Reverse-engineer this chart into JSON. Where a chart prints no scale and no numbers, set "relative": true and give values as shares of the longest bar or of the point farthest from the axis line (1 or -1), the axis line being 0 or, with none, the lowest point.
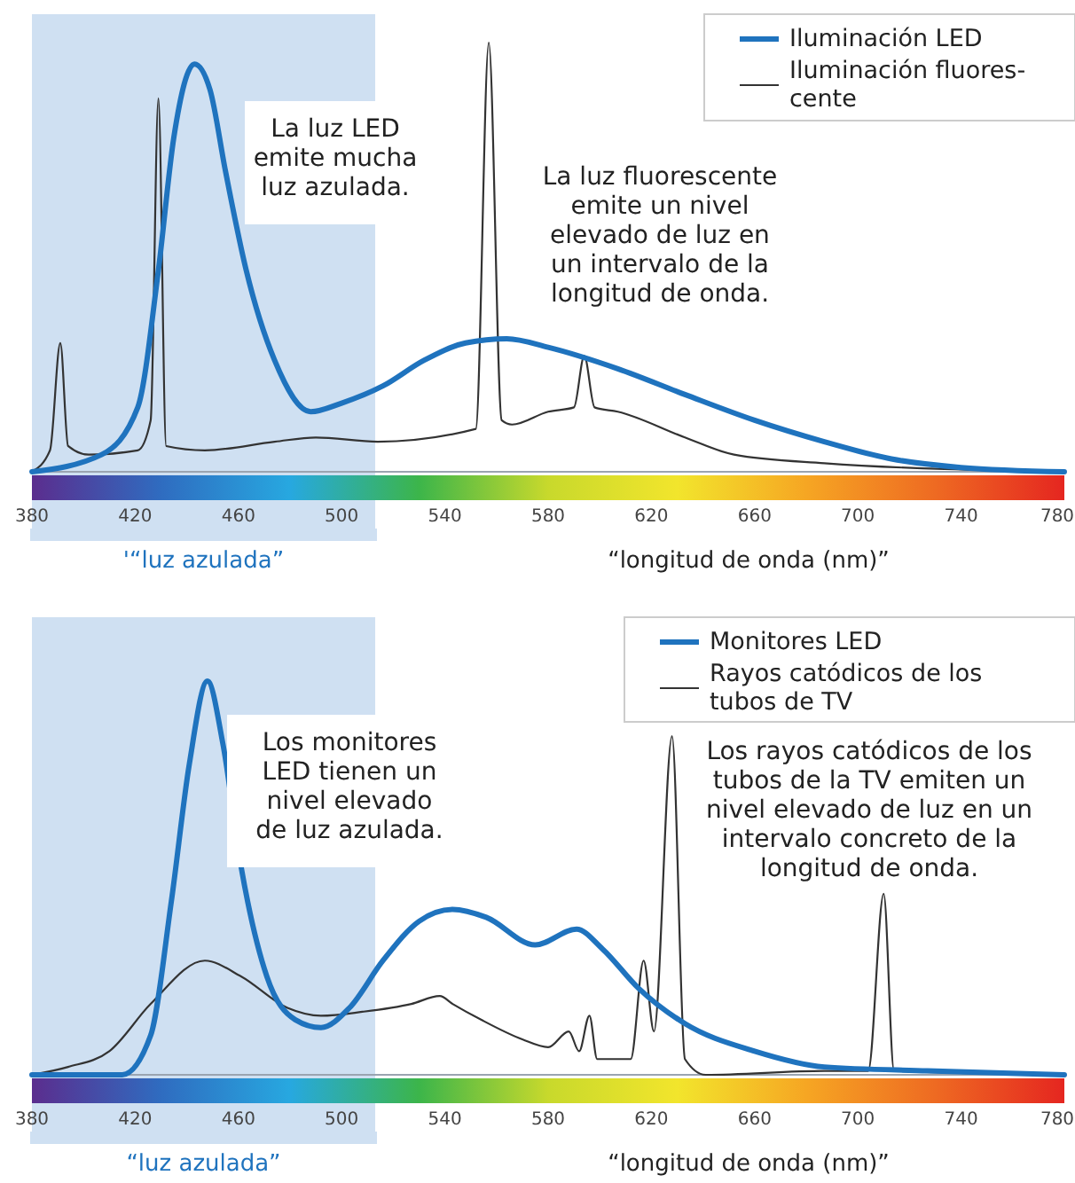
{
  "chart_data": [
    {
      "type": "line",
      "relative": true,
      "xlabel": "“longitud de onda (nm)”",
      "xlim": [
        380,
        780
      ],
      "xticks": [
        380,
        420,
        460,
        500,
        540,
        580,
        620,
        660,
        700,
        740,
        780
      ],
      "legend": "top right",
      "tick_labels": "x",
      "bands": [
        {
          "axis": "x",
          "from": 380,
          "to": 513,
          "label": "'“luz azulada”",
          "color": "#cfe0f2"
        }
      ],
      "annotations": [
        "La luz LED\nemite mucha\nluz azulada.",
        "La luz fluorescente\nemite un nivel\nelevado de luz en\nun intervalo de la\nlongitud de onda."
      ],
      "series": [
        {
          "name": "Iluminación LED",
          "color": "#1f73be",
          "x": [
            380,
            407,
            421,
            429,
            435,
            443,
            449,
            455,
            463,
            474,
            488,
            500,
            516,
            532,
            548,
            564,
            580,
            607,
            633,
            660,
            687,
            713,
            740,
            780
          ],
          "values": [
            0,
            0.04,
            0.15,
            0.47,
            0.78,
            0.95,
            0.89,
            0.7,
            0.47,
            0.26,
            0.14,
            0.16,
            0.2,
            0.26,
            0.3,
            0.31,
            0.29,
            0.24,
            0.18,
            0.12,
            0.07,
            0.03,
            0.01,
            0
          ]
        },
        {
          "name": "Iluminación fluores-\ncente",
          "color": "#333333",
          "x": [
            380,
            387,
            391,
            394,
            402,
            421,
            426,
            429,
            432,
            447,
            474,
            490,
            514,
            552,
            557,
            562,
            566,
            580,
            590,
            594,
            598,
            607,
            633,
            652,
            687,
            780
          ],
          "values": [
            0,
            0.05,
            0.3,
            0.06,
            0.04,
            0.05,
            0.12,
            0.87,
            0.06,
            0.05,
            0.07,
            0.08,
            0.07,
            0.1,
            1,
            0.12,
            0.11,
            0.14,
            0.15,
            0.27,
            0.15,
            0.14,
            0.08,
            0.04,
            0.02,
            0
          ]
        }
      ]
    },
    {
      "type": "line",
      "relative": true,
      "xlabel": "“longitud de onda (nm)”",
      "xlim": [
        380,
        780
      ],
      "xticks": [
        380,
        420,
        460,
        500,
        540,
        580,
        620,
        660,
        700,
        740,
        780
      ],
      "legend": "top right",
      "tick_labels": "x",
      "bands": [
        {
          "axis": "x",
          "from": 380,
          "to": 513,
          "label": "“luz azulada”",
          "color": "#cfe0f2"
        }
      ],
      "annotations": [
        "Los monitores\nLED tienen un\nnivel elevado\nde luz azulada.",
        "Los rayos catódicos de los\ntubos de la TV emiten un\nnivel elevado de luz en un\nintervalo concreto de la\nlongitud de onda."
      ],
      "series": [
        {
          "name": "Monitores LED",
          "color": "#1f73be",
          "x": [
            380,
            415,
            426,
            434,
            441,
            448,
            454,
            461,
            471,
            482,
            492,
            503,
            516,
            530,
            543,
            556,
            575,
            591,
            601,
            615,
            633,
            660,
            687,
            727,
            780
          ],
          "values": [
            0,
            0,
            0.1,
            0.44,
            0.79,
            1,
            0.84,
            0.53,
            0.25,
            0.14,
            0.12,
            0.17,
            0.29,
            0.39,
            0.42,
            0.4,
            0.33,
            0.37,
            0.32,
            0.22,
            0.13,
            0.06,
            0.02,
            0.01,
            0
          ]
        },
        {
          "name": "Rayos catódicos de los\ntubos de TV",
          "color": "#333333",
          "x": [
            380,
            394,
            410,
            426,
            447,
            461,
            479,
            492,
            508,
            527,
            538,
            543,
            554,
            570,
            580,
            588,
            592,
            596,
            599,
            612,
            617,
            621,
            628,
            633,
            641,
            687,
            704,
            710,
            714,
            780
          ],
          "values": [
            0,
            0.02,
            0.06,
            0.18,
            0.29,
            0.25,
            0.17,
            0.15,
            0.16,
            0.18,
            0.2,
            0.18,
            0.14,
            0.09,
            0.07,
            0.11,
            0.06,
            0.15,
            0.04,
            0.04,
            0.29,
            0.11,
            0.86,
            0.04,
            0,
            0.01,
            0.01,
            0.46,
            0.01,
            0
          ]
        }
      ]
    }
  ]
}
